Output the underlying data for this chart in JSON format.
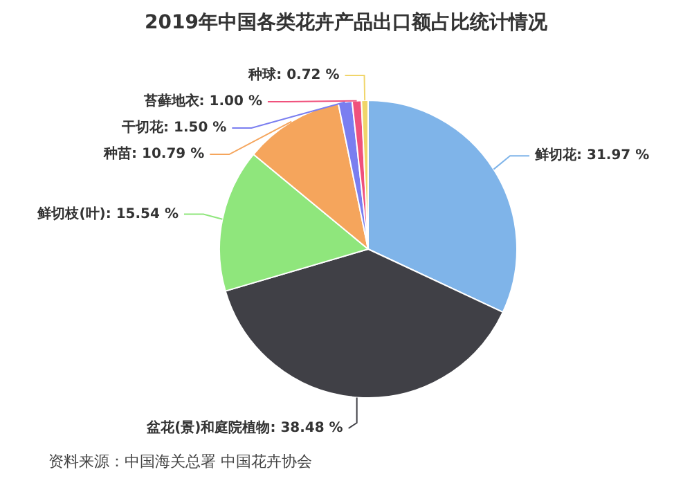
{
  "chart_data": {
    "type": "pie",
    "title": "2019年中国各类花卉产品出口额占比统计情况",
    "categories": [
      "鲜切花",
      "盆花(景)和庭院植物",
      "鲜切枝(叶)",
      "种苗",
      "干切花",
      "苔藓地衣",
      "种球"
    ],
    "values": [
      31.97,
      38.48,
      15.54,
      10.79,
      1.5,
      1.0,
      0.72
    ],
    "value_labels": [
      "31.97 %",
      "38.48 %",
      "15.54 %",
      "10.79 %",
      "1.50 %",
      "1.00 %",
      "0.72 %"
    ],
    "colors": [
      "#7fb4e9",
      "#404046",
      "#8fe67c",
      "#f5a55c",
      "#7a7ef0",
      "#f0517c",
      "#f0d56a"
    ],
    "legend": false,
    "annotations": [
      "资料来源：中国海关总署 中国花卉协会"
    ]
  }
}
